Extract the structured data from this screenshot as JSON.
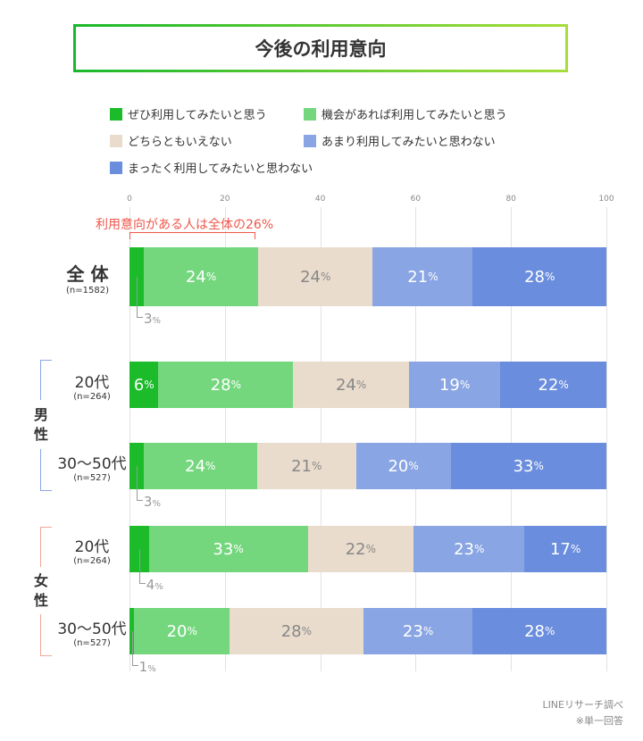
{
  "title": "今後の利用意向",
  "chart_data": {
    "type": "bar",
    "orientation": "horizontal",
    "stacked": true,
    "legend": [
      {
        "name": "ぜひ利用してみたいと思う",
        "color": "#1bbb2a"
      },
      {
        "name": "機会があれば利用してみたいと思う",
        "color": "#74d77e"
      },
      {
        "name": "どちらともいえない",
        "color": "#e9dccd"
      },
      {
        "name": "あまり利用してみたいと思わない",
        "color": "#89a5e3"
      },
      {
        "name": "まったく利用してみたいと思わない",
        "color": "#6a8ddd"
      }
    ],
    "xlim": [
      0,
      100
    ],
    "xticks": [
      "0",
      "20",
      "40",
      "60",
      "80",
      "100"
    ],
    "annotation": "利用意向がある人は全体の26%",
    "rows": [
      {
        "label": "全 体",
        "n": "(n=1582)",
        "group": "",
        "values": [
          3,
          24,
          24,
          21,
          28
        ]
      },
      {
        "label": "20代",
        "n": "(n=264)",
        "group": "男性",
        "values": [
          6,
          28,
          24,
          19,
          22
        ]
      },
      {
        "label": "30〜50代",
        "n": "(n=527)",
        "group": "男性",
        "values": [
          3,
          24,
          21,
          20,
          33
        ]
      },
      {
        "label": "20代",
        "n": "(n=264)",
        "group": "女性",
        "values": [
          4,
          33,
          22,
          23,
          17
        ]
      },
      {
        "label": "30〜50代",
        "n": "(n=527)",
        "group": "女性",
        "values": [
          1,
          20,
          28,
          23,
          28
        ]
      }
    ],
    "groups": [
      {
        "label": "男\n性",
        "color": "#8aa5e3"
      },
      {
        "label": "女\n性",
        "color": "#f0a898"
      }
    ]
  },
  "footer": {
    "source": "LINEリサーチ調べ",
    "note": "※単一回答"
  },
  "pct": "%"
}
